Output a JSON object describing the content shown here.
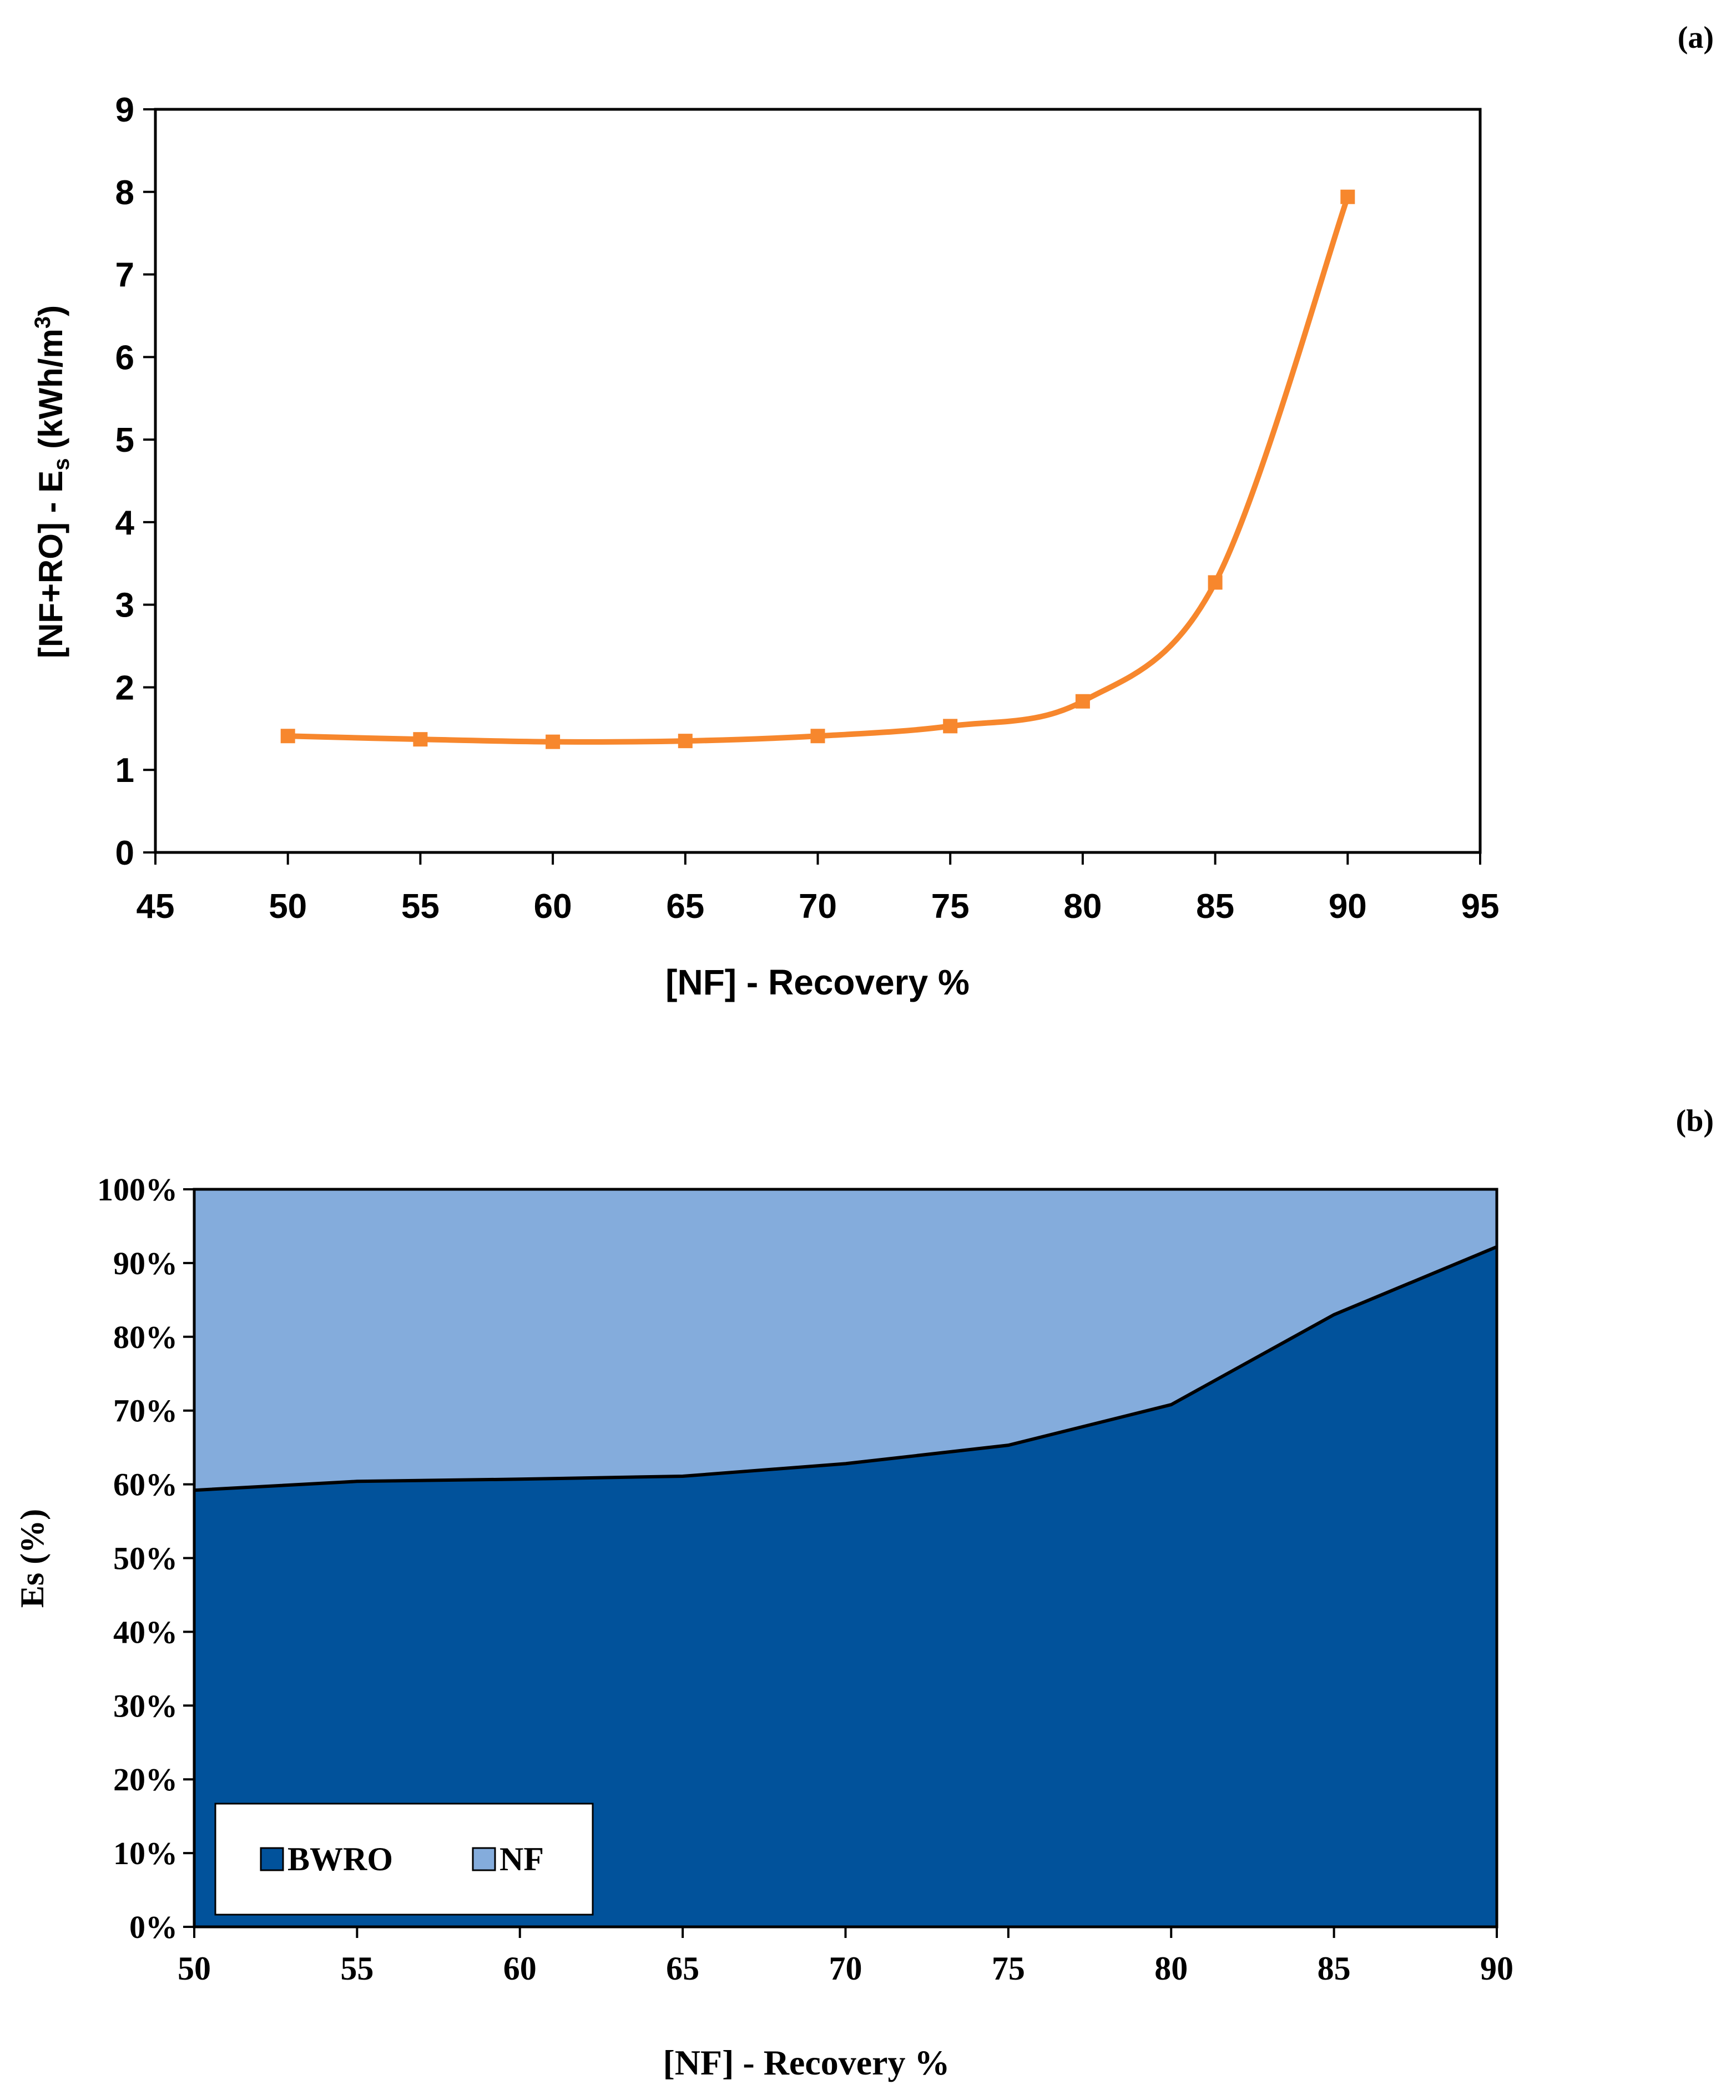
{
  "chart_data": [
    {
      "type": "line",
      "panel_label": "(a)",
      "title": "",
      "xlabel": "[NF] - Recovery %",
      "ylabel_parts": {
        "main": "[NF+RO] - E",
        "sub": "s",
        "unit_open": " (kWh/m",
        "sup": "3",
        "unit_close": ")"
      },
      "xlim": [
        45,
        95
      ],
      "ylim": [
        0,
        9
      ],
      "xticks": [
        "45",
        "50",
        "55",
        "60",
        "65",
        "70",
        "75",
        "80",
        "85",
        "90",
        "95"
      ],
      "yticks": [
        "0",
        "1",
        "2",
        "3",
        "4",
        "5",
        "6",
        "7",
        "8",
        "9"
      ],
      "x": [
        50,
        55,
        60,
        65,
        70,
        75,
        80,
        85,
        90
      ],
      "series": [
        {
          "name": "[NF+RO] - Es",
          "values": [
            1.41,
            1.37,
            1.34,
            1.35,
            1.41,
            1.53,
            1.83,
            3.27,
            7.94
          ]
        }
      ],
      "colors": {
        "line": "#F7872D",
        "marker": "#F7872D",
        "axis": "#000000"
      },
      "grid": false
    },
    {
      "type": "area",
      "panel_label": "(b)",
      "stacked": "percent",
      "title": "",
      "xlabel": "[NF] - Recovery %",
      "ylabel": "Es (%)",
      "xlim": [
        50,
        90
      ],
      "ylim": [
        0,
        100
      ],
      "xticks": [
        "50",
        "55",
        "60",
        "65",
        "70",
        "75",
        "80",
        "85",
        "90"
      ],
      "yticks": [
        "0%",
        "10%",
        "20%",
        "30%",
        "40%",
        "50%",
        "60%",
        "70%",
        "80%",
        "90%",
        "100%"
      ],
      "x": [
        50,
        55,
        60,
        65,
        70,
        75,
        80,
        85,
        90
      ],
      "series": [
        {
          "name": "BWRO",
          "values": [
            59.2,
            60.4,
            60.7,
            61.1,
            62.8,
            65.3,
            70.8,
            83.0,
            92.2
          ],
          "color": "#01529B"
        },
        {
          "name": "NF",
          "values": [
            40.8,
            39.6,
            39.3,
            38.9,
            37.2,
            34.7,
            29.2,
            17.0,
            7.8
          ],
          "color": "#84ACDC"
        }
      ],
      "legend": {
        "position": "bottom-left",
        "entries": [
          "BWRO",
          "NF"
        ]
      },
      "grid": false
    }
  ]
}
